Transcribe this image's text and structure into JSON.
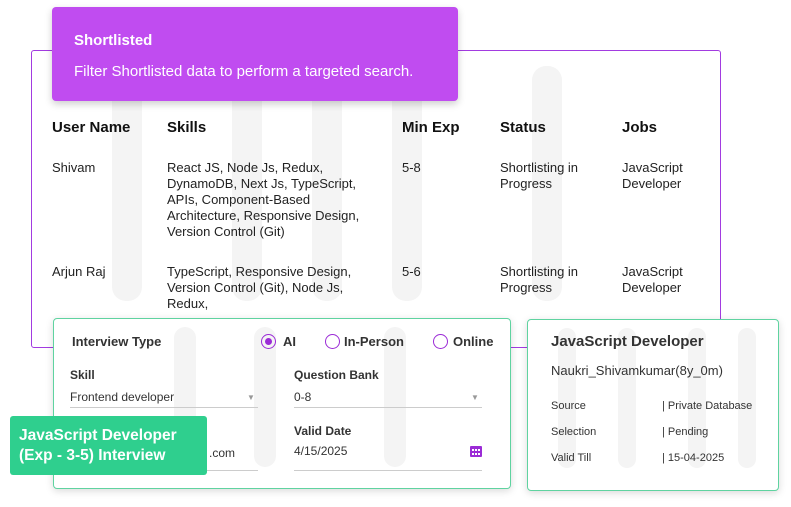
{
  "tooltip": {
    "title": "Shortlisted",
    "subtitle": "Filter Shortlisted data to perform a targeted search."
  },
  "table": {
    "headers": [
      "User Name",
      "Skills",
      "Min Exp",
      "Status",
      "Jobs"
    ],
    "rows": [
      [
        "Shivam",
        "React JS, Node Js, Redux, DynamoDB, Next Js, TypeScript, APIs, Component-Based Architecture, Responsive Design, Version Control (Git)",
        "5-8",
        "Shortlisting in Progress",
        "JavaScript Developer"
      ],
      [
        "Arjun Raj",
        "TypeScript, Responsive Design, Version Control (Git),  Node Js, Redux,",
        "5-6",
        "Shortlisting in Progress",
        "JavaScript Developer"
      ]
    ]
  },
  "interview": {
    "type_label": "Interview Type",
    "options": [
      {
        "label": "AI",
        "selected": true
      },
      {
        "label": "In-Person",
        "selected": false
      },
      {
        "label": "Online",
        "selected": false
      }
    ],
    "skill_label": "Skill",
    "skill_value": "Frontend developer",
    "qbank_label": "Question Bank",
    "qbank_value": "0-8",
    "email_value_partial": ".com",
    "date_label": "Valid Date",
    "date_value": "4/15/2025"
  },
  "badge": {
    "line1": "JavaScript Developer",
    "line2": "(Exp - 3-5) Interview"
  },
  "job_card": {
    "title": "JavaScript Developer",
    "candidate": "Naukri_Shivamkumar(8y_0m)",
    "fields": [
      {
        "label": "Source",
        "value": "| Private Database"
      },
      {
        "label": "Selection",
        "value": "| Pending"
      },
      {
        "label": "Valid Till",
        "value": "| 15-04-2025"
      }
    ]
  },
  "colors": {
    "purple": "#c04cf0",
    "green": "#2fcf8e",
    "border_green": "#5fd3a0"
  }
}
